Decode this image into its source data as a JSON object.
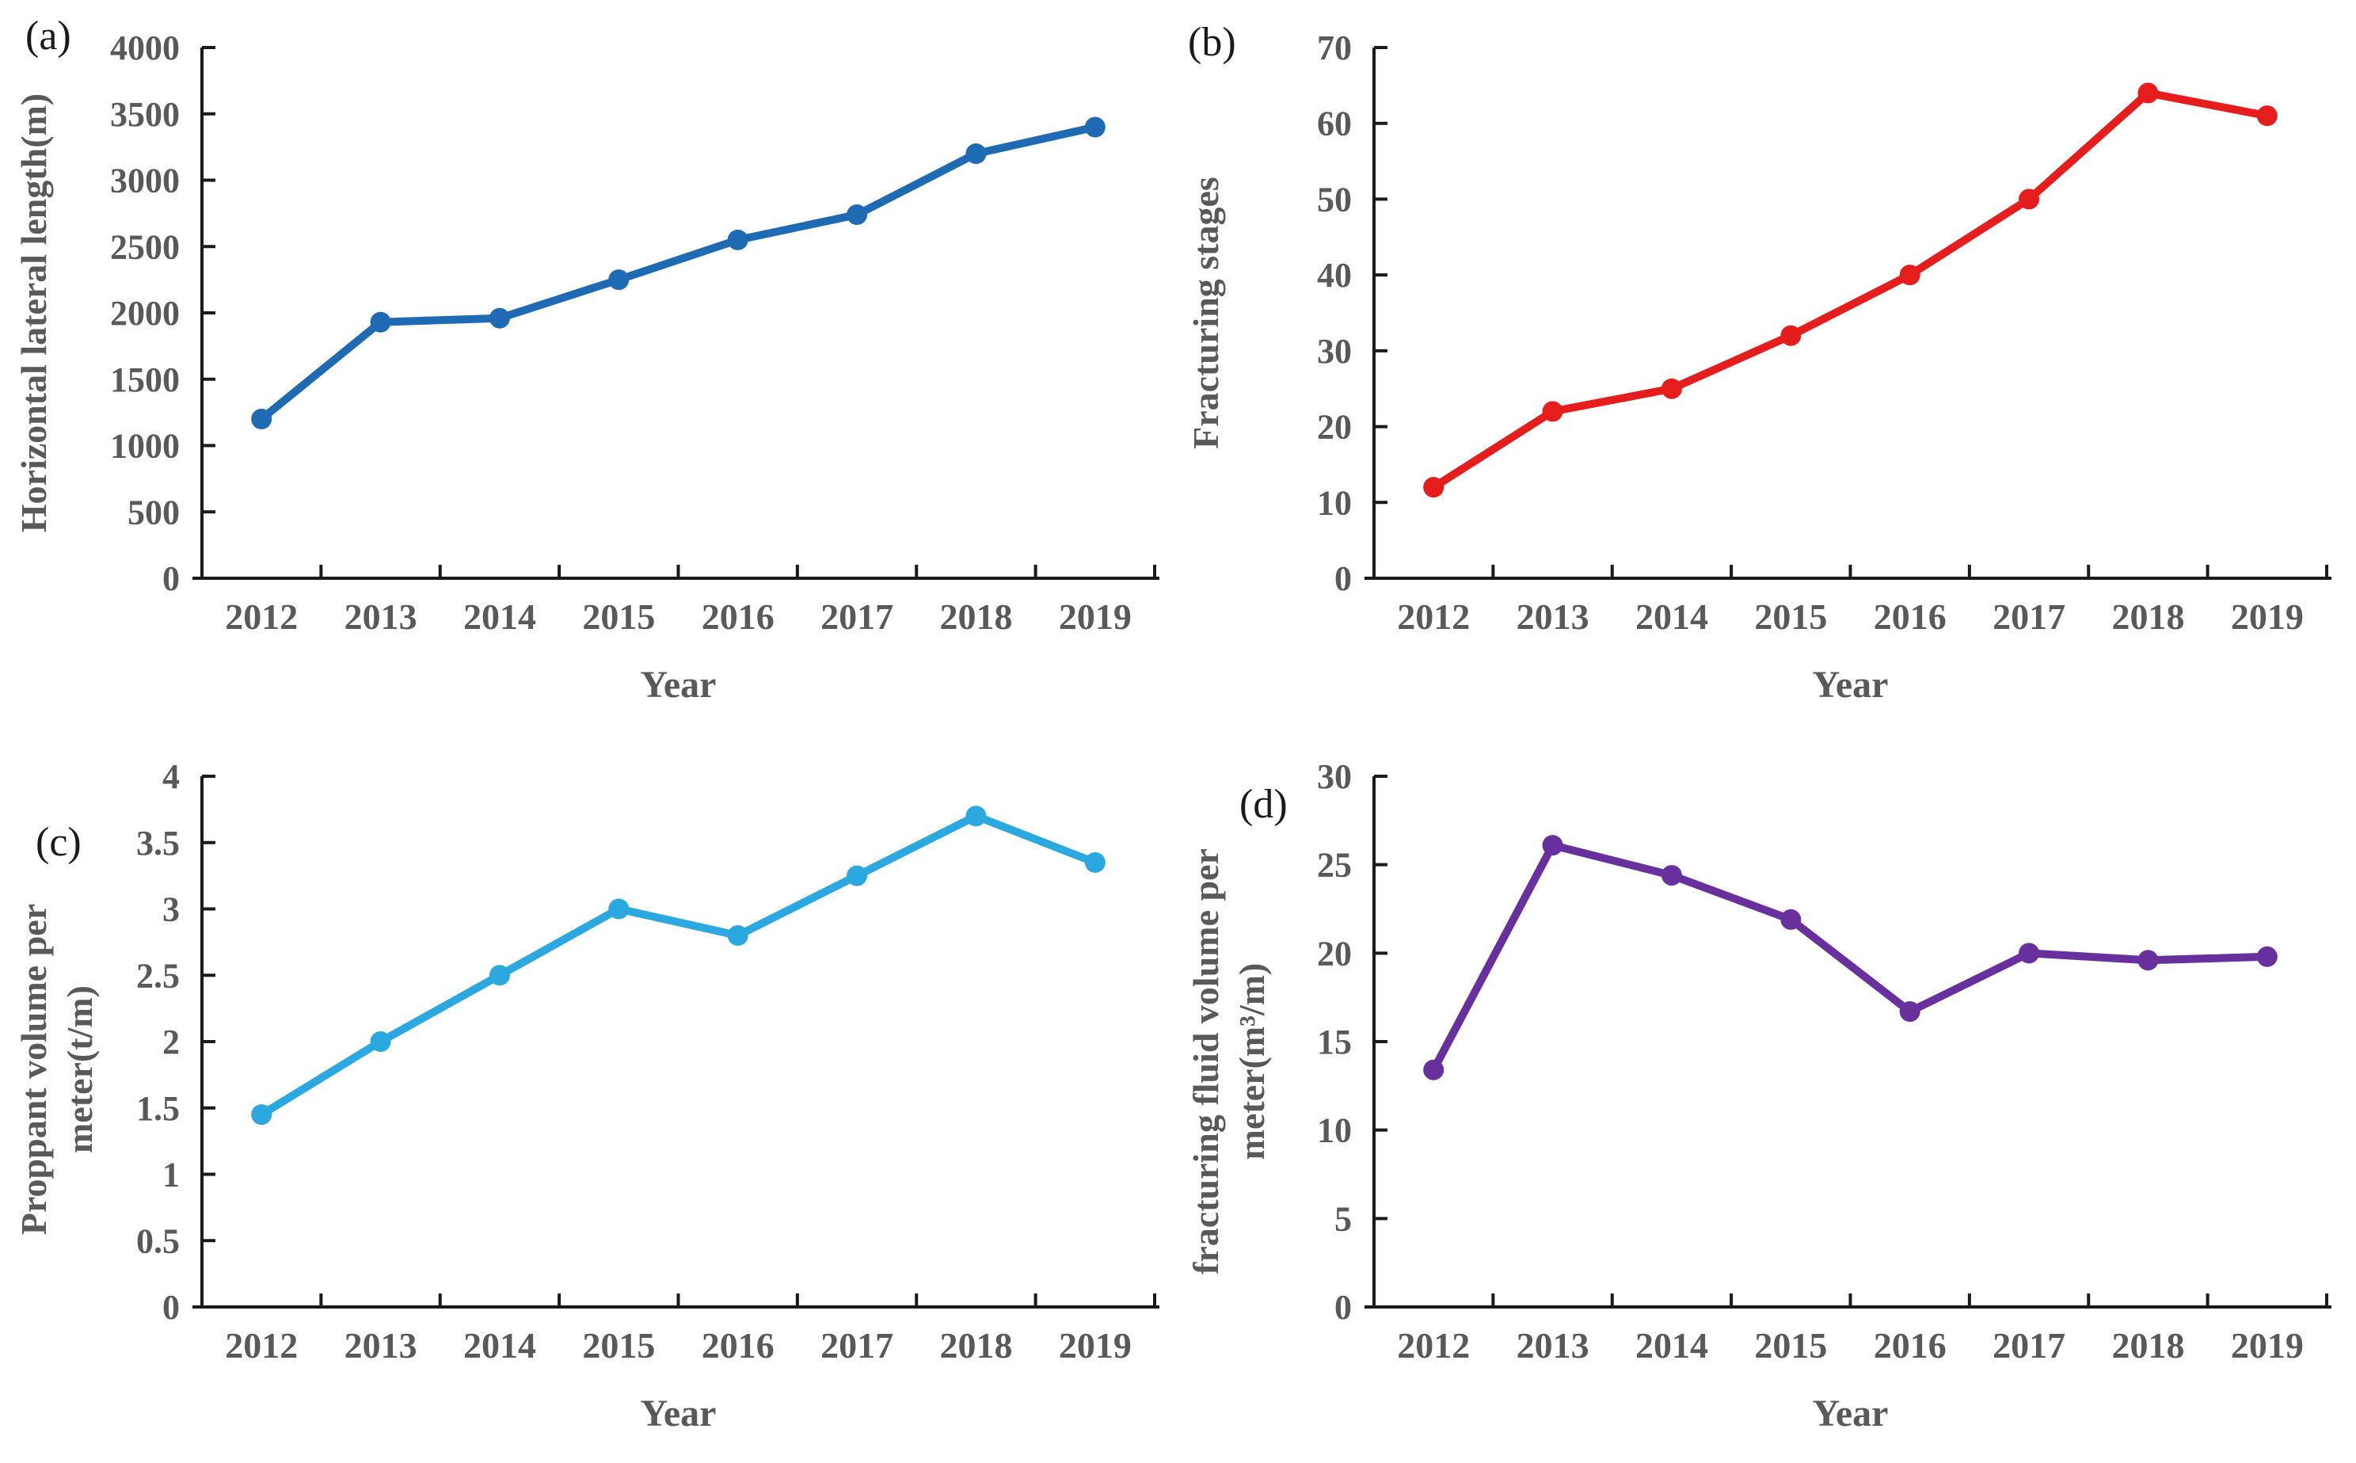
{
  "figure": {
    "xlabel": "Year",
    "background": "#ffffff"
  },
  "styles": {
    "axis_color": "#1a1a1a",
    "label_color": "#595959",
    "panel_letter_color": "#1a1a1a"
  },
  "chart_data": [
    {
      "id": "a",
      "panel_label": "(a)",
      "type": "line",
      "series_color": "#1E6BB4",
      "categories": [
        "2012",
        "2013",
        "2014",
        "2015",
        "2016",
        "2017",
        "2018",
        "2019"
      ],
      "values": [
        1200,
        1930,
        1960,
        2250,
        2550,
        2740,
        3200,
        3400
      ],
      "ylabel_lines": [
        "Horizontal lateral length(m)"
      ],
      "xlabel": "Year",
      "ylim": [
        0,
        4000
      ],
      "yticks": [
        "0",
        "500",
        "1000",
        "1500",
        "2000",
        "2500",
        "3000",
        "3500",
        "4000"
      ],
      "grid": "off",
      "legend": "none"
    },
    {
      "id": "b",
      "panel_label": "(b)",
      "type": "line",
      "series_color": "#E51D1D",
      "categories": [
        "2012",
        "2013",
        "2014",
        "2015",
        "2016",
        "2017",
        "2018",
        "2019"
      ],
      "values": [
        12,
        22,
        25,
        32,
        40,
        50,
        64,
        61
      ],
      "ylabel_lines": [
        "Fracturing stages"
      ],
      "xlabel": "Year",
      "ylim": [
        0,
        70
      ],
      "yticks": [
        "0",
        "10",
        "20",
        "30",
        "40",
        "50",
        "60",
        "70"
      ],
      "grid": "off",
      "legend": "none"
    },
    {
      "id": "c",
      "panel_label": "(c)",
      "type": "line",
      "series_color": "#2BA8E0",
      "categories": [
        "2012",
        "2013",
        "2014",
        "2015",
        "2016",
        "2017",
        "2018",
        "2019"
      ],
      "values": [
        1.45,
        2.0,
        2.5,
        3.0,
        2.8,
        3.25,
        3.7,
        3.35
      ],
      "ylabel_lines": [
        "Proppant volume per",
        "meter(t/m)"
      ],
      "xlabel": "Year",
      "ylim": [
        0,
        4
      ],
      "yticks": [
        "0",
        "0.5",
        "1",
        "1.5",
        "2",
        "2.5",
        "3",
        "3.5",
        "4"
      ],
      "grid": "off",
      "legend": "none"
    },
    {
      "id": "d",
      "panel_label": "(d)",
      "type": "line",
      "series_color": "#67309C",
      "categories": [
        "2012",
        "2013",
        "2014",
        "2015",
        "2016",
        "2017",
        "2018",
        "2019"
      ],
      "values": [
        13.4,
        26.1,
        24.4,
        21.9,
        16.7,
        20.0,
        19.6,
        19.8
      ],
      "ylabel_lines": [
        "fracturing fluid volume per",
        "meter(m³/m)"
      ],
      "xlabel": "Year",
      "ylim": [
        0,
        30
      ],
      "yticks": [
        "0",
        "5",
        "10",
        "15",
        "20",
        "25",
        "30"
      ],
      "grid": "off",
      "legend": "none"
    }
  ]
}
